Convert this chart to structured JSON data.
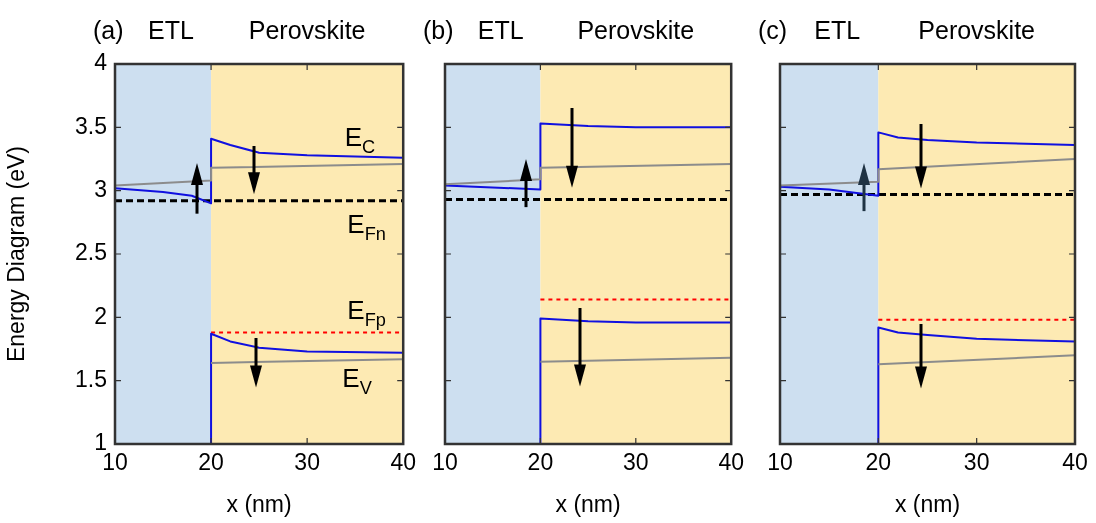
{
  "chart_data": [
    {
      "type": "line",
      "title": "(a)",
      "ylabel": "Energy Diagram (eV)",
      "xlabel": "x (nm)",
      "xlim": [
        10,
        40
      ],
      "xticks": [
        10,
        20,
        30,
        40
      ],
      "ylim": [
        1,
        4
      ],
      "yticks": [
        1,
        1.5,
        2,
        2.5,
        3,
        3.5,
        4
      ],
      "grid": false,
      "legend": false,
      "marker": "none",
      "bands": [
        {
          "axis": "x",
          "from": 10,
          "to": 20,
          "label": "ETL",
          "color": "#cddff0"
        },
        {
          "axis": "x",
          "from": 20,
          "to": 40,
          "label": "Perovskite",
          "color": "#fdeab3"
        }
      ],
      "series": [
        {
          "color": "#8c8c8c",
          "x": [
            10,
            20,
            20,
            40
          ],
          "values": [
            3.04,
            3.08,
            3.18,
            3.21
          ]
        },
        {
          "color": "#8c8c8c",
          "x": [
            20,
            40
          ],
          "values": [
            1.64,
            1.67
          ]
        },
        {
          "color": "#1010e0",
          "x": [
            10,
            15,
            18,
            20,
            20,
            22,
            25,
            30,
            40
          ],
          "values": [
            3.02,
            2.99,
            2.96,
            2.9,
            3.41,
            3.36,
            3.3,
            3.28,
            3.26
          ]
        },
        {
          "color": "#1010e0",
          "x": [
            20,
            20,
            22,
            25,
            30,
            40
          ],
          "values": [
            1,
            1.87,
            1.81,
            1.76,
            1.73,
            1.72
          ]
        },
        {
          "color": "#000000",
          "line_style": "dashed",
          "x": [
            10,
            40
          ],
          "values": [
            2.92,
            2.92
          ]
        },
        {
          "color": "#ff0000",
          "line_style": "dotted",
          "x": [
            20,
            40
          ],
          "values": [
            1.88,
            1.88
          ]
        }
      ],
      "annotations": [
        "E$_{C}$",
        "E$_{Fn}$",
        "E$_{Fp}$",
        "E$_{V}$"
      ]
    },
    {
      "type": "line",
      "title": "(b)",
      "xlabel": "x (nm)",
      "xlim": [
        10,
        40
      ],
      "xticks": [
        10,
        20,
        30,
        40
      ],
      "ylim": [
        1,
        4
      ],
      "yticks": [
        1,
        1.5,
        2,
        2.5,
        3,
        3.5,
        4
      ],
      "tick_labels": "x",
      "grid": false,
      "legend": false,
      "marker": "none",
      "bands": [
        {
          "axis": "x",
          "from": 10,
          "to": 20,
          "label": "ETL",
          "color": "#cddff0"
        },
        {
          "axis": "x",
          "from": 20,
          "to": 40,
          "label": "Perovskite",
          "color": "#fdeab3"
        }
      ],
      "series": [
        {
          "color": "#8c8c8c",
          "x": [
            10,
            20,
            20,
            40
          ],
          "values": [
            3.05,
            3.09,
            3.18,
            3.21
          ]
        },
        {
          "color": "#8c8c8c",
          "x": [
            20,
            40
          ],
          "values": [
            1.65,
            1.68
          ]
        },
        {
          "color": "#1010e0",
          "x": [
            10,
            20,
            20,
            25,
            30,
            40
          ],
          "values": [
            3.04,
            3.01,
            3.53,
            3.51,
            3.5,
            3.5
          ]
        },
        {
          "color": "#1010e0",
          "x": [
            20,
            20,
            25,
            30,
            40
          ],
          "values": [
            1,
            1.99,
            1.97,
            1.96,
            1.96
          ]
        },
        {
          "color": "#000000",
          "line_style": "dashed",
          "x": [
            10,
            40
          ],
          "values": [
            2.93,
            2.93
          ]
        },
        {
          "color": "#ff0000",
          "line_style": "dotted",
          "x": [
            20,
            40
          ],
          "values": [
            2.14,
            2.14
          ]
        }
      ]
    },
    {
      "type": "line",
      "title": "(c)",
      "xlabel": "x (nm)",
      "xlim": [
        10,
        40
      ],
      "xticks": [
        10,
        20,
        30,
        40
      ],
      "ylim": [
        1,
        4
      ],
      "yticks": [
        1,
        1.5,
        2,
        2.5,
        3,
        3.5,
        4
      ],
      "tick_labels": "x",
      "grid": false,
      "legend": false,
      "marker": "none",
      "bands": [
        {
          "axis": "x",
          "from": 10,
          "to": 20,
          "label": "ETL",
          "color": "#cddff0"
        },
        {
          "axis": "x",
          "from": 20,
          "to": 40,
          "label": "Perovskite",
          "color": "#fdeab3"
        }
      ],
      "series": [
        {
          "color": "#8c8c8c",
          "x": [
            10,
            20,
            20,
            40
          ],
          "values": [
            3.04,
            3.07,
            3.17,
            3.25
          ]
        },
        {
          "color": "#8c8c8c",
          "x": [
            20,
            40
          ],
          "values": [
            1.63,
            1.7
          ]
        },
        {
          "color": "#1010e0",
          "x": [
            10,
            15,
            20,
            20,
            22,
            25,
            30,
            40
          ],
          "values": [
            3.03,
            3.01,
            2.96,
            3.46,
            3.42,
            3.4,
            3.38,
            3.36
          ]
        },
        {
          "color": "#1010e0",
          "x": [
            20,
            20,
            22,
            25,
            30,
            40
          ],
          "values": [
            1,
            1.92,
            1.88,
            1.86,
            1.83,
            1.81
          ]
        },
        {
          "color": "#000000",
          "line_style": "dashed",
          "x": [
            10,
            40
          ],
          "values": [
            2.97,
            2.97
          ]
        },
        {
          "color": "#ff0000",
          "line_style": "dotted",
          "x": [
            20,
            40
          ],
          "values": [
            1.98,
            1.98
          ]
        }
      ]
    }
  ]
}
